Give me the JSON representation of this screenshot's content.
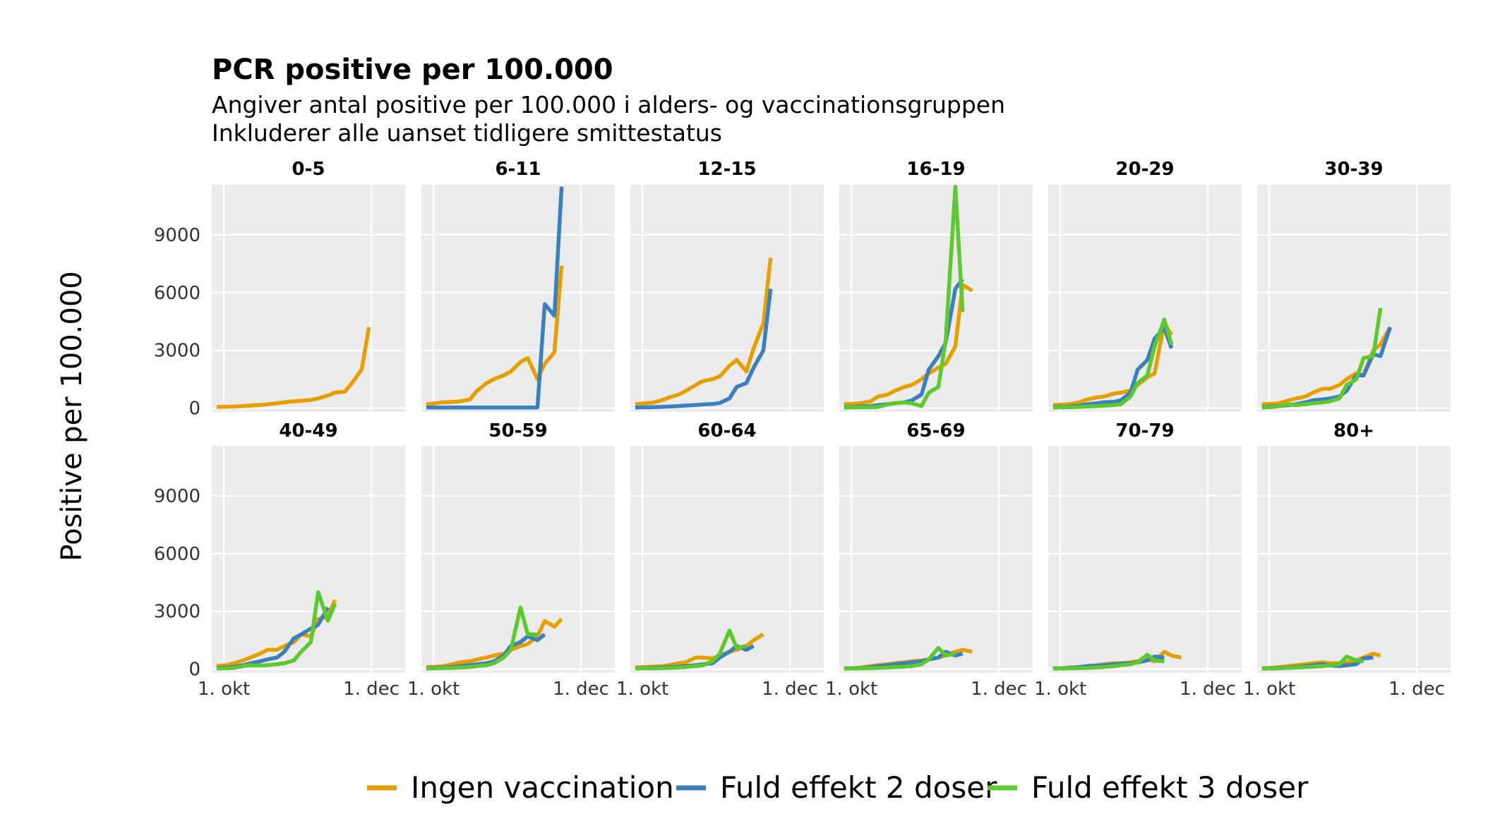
{
  "chart_data": {
    "type": "line",
    "title": "PCR positive per 100.000",
    "subtitle": [
      "Angiver antal positive per 100.000 i alders- og vaccinationsgruppen",
      "Inkluderer alle uanset tidligere smittestatus"
    ],
    "xlabel": "",
    "ylabel": "Positive per 100.000",
    "ylim": [
      -200,
      11600
    ],
    "yticks": [
      0,
      3000,
      6000,
      9000
    ],
    "x_range_days": [
      -5,
      75
    ],
    "xticks": [
      {
        "value": 0,
        "label": "1. okt"
      },
      {
        "value": 61,
        "label": "1. dec"
      }
    ],
    "grid": true,
    "legend": "bottom",
    "series_meta": [
      {
        "name": "Ingen vaccination",
        "color": "#E69F00"
      },
      {
        "name": "Fuld effekt 2 doser",
        "color": "#3A7FC0"
      },
      {
        "name": "Fuld effekt 3 doser",
        "color": "#5CC92E"
      }
    ],
    "x": [
      -3,
      4,
      11,
      18,
      25,
      32,
      39,
      46,
      53,
      60,
      67,
      74,
      81,
      88,
      95,
      102,
      109,
      116,
      123,
      130,
      137,
      144,
      151
    ],
    "x_days": [
      -3,
      1,
      4,
      8,
      11,
      15,
      18,
      22,
      25,
      29,
      32,
      36,
      39,
      43,
      46,
      50,
      53,
      57,
      60,
      64,
      67,
      71,
      74
    ],
    "panels": [
      {
        "label": "0-5",
        "series": [
          [
            60,
            70,
            80,
            100,
            130,
            160,
            200,
            250,
            300,
            350,
            380,
            420,
            500,
            650,
            800,
            850,
            1300,
            2000,
            4200
          ]
        ]
      },
      {
        "label": "6-11",
        "series": [
          [
            200,
            250,
            300,
            320,
            350,
            450,
            900,
            1300,
            1500,
            1700,
            1900,
            2400,
            2600,
            1500,
            2300,
            2900,
            7400
          ],
          [
            30,
            30,
            30,
            30,
            30,
            30,
            30,
            30,
            30,
            30,
            30,
            30,
            30,
            30,
            5400,
            4800,
            11500
          ]
        ]
      },
      {
        "label": "12-15",
        "series": [
          [
            200,
            250,
            280,
            400,
            550,
            700,
            900,
            1200,
            1400,
            1500,
            1650,
            2200,
            2500,
            1900,
            3100,
            4400,
            7800
          ],
          [
            30,
            40,
            50,
            60,
            80,
            100,
            130,
            160,
            190,
            210,
            260,
            500,
            1100,
            1300,
            2100,
            3000,
            6200
          ]
        ]
      },
      {
        "label": "16-19",
        "series": [
          [
            200,
            220,
            250,
            350,
            600,
            700,
            900,
            1100,
            1200,
            1500,
            1800,
            2100,
            2300,
            3200,
            6400,
            6100
          ],
          [
            50,
            60,
            80,
            100,
            150,
            200,
            250,
            300,
            400,
            700,
            2000,
            2700,
            3400,
            6200,
            6700
          ],
          [
            30,
            40,
            40,
            50,
            60,
            200,
            250,
            300,
            250,
            100,
            800,
            1100,
            3500,
            11500,
            5000
          ]
        ]
      },
      {
        "label": "20-29",
        "series": [
          [
            150,
            180,
            200,
            300,
            450,
            550,
            600,
            750,
            800,
            900,
            1200,
            1600,
            1800,
            4400,
            3800
          ],
          [
            50,
            60,
            80,
            120,
            200,
            250,
            300,
            320,
            400,
            800,
            2000,
            2500,
            3600,
            4200,
            3100
          ],
          [
            30,
            40,
            50,
            60,
            80,
            100,
            120,
            150,
            200,
            600,
            1300,
            1700,
            3200,
            4600,
            3300
          ]
        ]
      },
      {
        "label": "30-39",
        "series": [
          [
            200,
            220,
            250,
            400,
            500,
            600,
            800,
            1000,
            1000,
            1200,
            1500,
            1800,
            1700,
            3000,
            3300,
            4200
          ],
          [
            50,
            80,
            100,
            150,
            200,
            300,
            400,
            450,
            500,
            600,
            900,
            1700,
            1700,
            2800,
            2700,
            4200
          ],
          [
            30,
            50,
            100,
            200,
            150,
            200,
            250,
            300,
            350,
            500,
            1200,
            1500,
            2600,
            2700,
            5200
          ]
        ]
      },
      {
        "label": "40-49",
        "series": [
          [
            150,
            200,
            300,
            450,
            600,
            800,
            1000,
            1000,
            1200,
            1400,
            1800,
            1700,
            2600,
            2700,
            3600
          ],
          [
            50,
            80,
            120,
            200,
            300,
            400,
            500,
            600,
            900,
            1600,
            1800,
            2100,
            2300,
            3200
          ],
          [
            30,
            40,
            60,
            150,
            200,
            180,
            200,
            250,
            300,
            450,
            900,
            1400,
            4000,
            2500,
            3400
          ]
        ]
      },
      {
        "label": "50-59",
        "series": [
          [
            100,
            120,
            150,
            250,
            350,
            400,
            500,
            600,
            700,
            800,
            1000,
            1200,
            1300,
            1700,
            2500,
            2200,
            2600
          ],
          [
            50,
            60,
            80,
            100,
            150,
            200,
            250,
            300,
            400,
            700,
            1200,
            1400,
            1700,
            1500,
            1800
          ],
          [
            30,
            40,
            50,
            60,
            80,
            100,
            150,
            200,
            300,
            600,
            1000,
            3200,
            1800,
            1800
          ]
        ]
      },
      {
        "label": "60-64",
        "series": [
          [
            80,
            100,
            120,
            150,
            200,
            300,
            350,
            600,
            600,
            550,
            700,
            900,
            1000,
            1200,
            1500,
            1800
          ],
          [
            40,
            50,
            60,
            80,
            100,
            120,
            150,
            200,
            250,
            300,
            600,
            900,
            1200,
            1000,
            1200
          ],
          [
            30,
            40,
            40,
            50,
            60,
            80,
            100,
            150,
            200,
            400,
            800,
            2000,
            1100,
            1200
          ]
        ]
      },
      {
        "label": "65-69",
        "series": [
          [
            40,
            50,
            80,
            150,
            200,
            250,
            300,
            350,
            400,
            450,
            500,
            600,
            700,
            900,
            1000,
            900
          ],
          [
            30,
            40,
            50,
            100,
            150,
            200,
            250,
            300,
            350,
            400,
            500,
            600,
            900,
            700,
            800
          ],
          [
            20,
            30,
            40,
            50,
            60,
            80,
            100,
            120,
            150,
            250,
            500,
            1100,
            700,
            800
          ]
        ]
      },
      {
        "label": "70-79",
        "series": [
          [
            40,
            50,
            80,
            100,
            150,
            200,
            250,
            300,
            300,
            350,
            400,
            500,
            400,
            900,
            700,
            600
          ],
          [
            30,
            40,
            60,
            100,
            150,
            180,
            200,
            250,
            280,
            300,
            350,
            450,
            650,
            600
          ],
          [
            20,
            30,
            40,
            50,
            60,
            80,
            100,
            150,
            200,
            250,
            350,
            750,
            450,
            400
          ]
        ]
      },
      {
        "label": "80+",
        "series": [
          [
            40,
            60,
            100,
            150,
            200,
            250,
            300,
            350,
            300,
            300,
            350,
            450,
            600,
            800,
            700
          ],
          [
            30,
            40,
            60,
            80,
            100,
            150,
            200,
            250,
            200,
            150,
            200,
            250,
            550,
            600
          ],
          [
            20,
            30,
            40,
            60,
            80,
            100,
            120,
            150,
            200,
            250,
            650,
            450,
            400
          ]
        ]
      }
    ]
  }
}
